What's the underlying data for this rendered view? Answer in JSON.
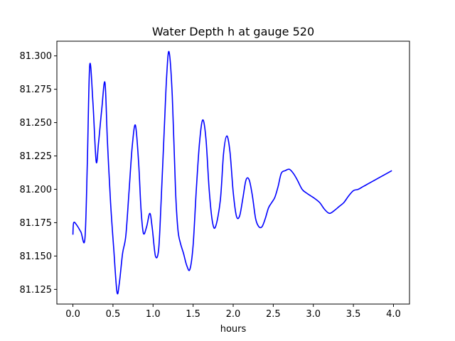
{
  "chart_data": {
    "type": "line",
    "title": "Water Depth h at gauge 520",
    "xlabel": "hours",
    "ylabel": "",
    "xlim": [
      -0.2,
      4.2
    ],
    "ylim": [
      81.114,
      81.311
    ],
    "x_ticks": [
      "0.0",
      "0.5",
      "1.0",
      "1.5",
      "2.0",
      "2.5",
      "3.0",
      "3.5",
      "4.0"
    ],
    "y_ticks": [
      "81.125",
      "81.150",
      "81.175",
      "81.200",
      "81.225",
      "81.250",
      "81.275",
      "81.300"
    ],
    "grid": false,
    "legend": "none",
    "series": [
      {
        "color": "#0000ff",
        "x": [
          0.0,
          0.01,
          0.05,
          0.1,
          0.15,
          0.18,
          0.21,
          0.25,
          0.29,
          0.32,
          0.36,
          0.4,
          0.43,
          0.47,
          0.51,
          0.55,
          0.58,
          0.62,
          0.66,
          0.7,
          0.74,
          0.78,
          0.82,
          0.85,
          0.88,
          0.92,
          0.96,
          0.99,
          1.03,
          1.07,
          1.1,
          1.14,
          1.17,
          1.2,
          1.24,
          1.28,
          1.31,
          1.34,
          1.38,
          1.42,
          1.46,
          1.5,
          1.54,
          1.58,
          1.62,
          1.66,
          1.7,
          1.74,
          1.78,
          1.84,
          1.88,
          1.92,
          1.96,
          2.0,
          2.04,
          2.08,
          2.12,
          2.16,
          2.2,
          2.24,
          2.28,
          2.32,
          2.36,
          2.4,
          2.44,
          2.48,
          2.52,
          2.56,
          2.6,
          2.65,
          2.7,
          2.75,
          2.8,
          2.86,
          2.92,
          2.97,
          3.02,
          3.08,
          3.14,
          3.2,
          3.26,
          3.32,
          3.38,
          3.44,
          3.5,
          3.56,
          3.62,
          3.68,
          3.74,
          3.8,
          3.86,
          3.92,
          3.98
        ],
        "y": [
          81.166,
          81.175,
          81.173,
          81.168,
          81.163,
          81.22,
          81.293,
          81.265,
          81.221,
          81.235,
          81.26,
          81.28,
          81.237,
          81.19,
          81.155,
          81.123,
          81.13,
          81.152,
          81.165,
          81.198,
          81.232,
          81.248,
          81.22,
          81.185,
          81.167,
          81.172,
          81.182,
          81.171,
          81.15,
          81.155,
          81.19,
          81.245,
          81.285,
          81.303,
          81.27,
          81.2,
          81.17,
          81.16,
          81.152,
          81.143,
          81.14,
          81.158,
          81.2,
          81.235,
          81.252,
          81.238,
          81.2,
          81.176,
          81.172,
          81.192,
          81.227,
          81.24,
          81.228,
          81.198,
          81.18,
          81.18,
          81.193,
          81.207,
          81.207,
          81.195,
          81.178,
          81.172,
          81.172,
          81.178,
          81.186,
          81.19,
          81.194,
          81.202,
          81.212,
          81.214,
          81.215,
          81.212,
          81.207,
          81.2,
          81.197,
          81.195,
          81.193,
          81.19,
          81.185,
          81.182,
          81.184,
          81.187,
          81.19,
          81.195,
          81.199,
          81.2,
          81.202,
          81.204,
          81.206,
          81.208,
          81.21,
          81.212,
          81.214
        ]
      }
    ]
  }
}
